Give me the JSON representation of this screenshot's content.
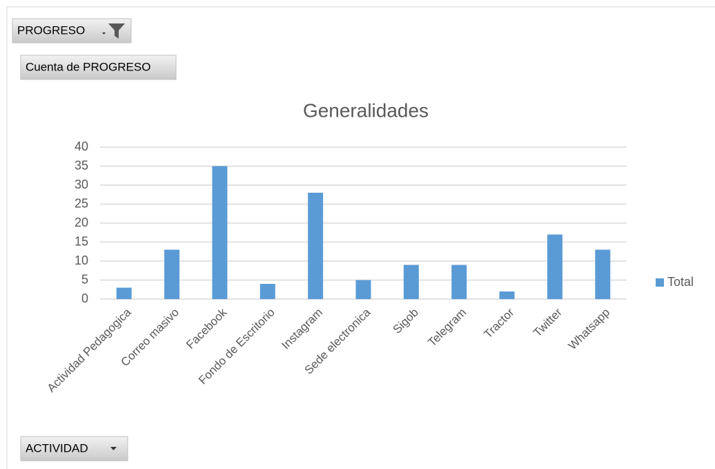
{
  "chart_data": {
    "type": "bar",
    "title": "Generalidades",
    "filter_field": "PROGRESO",
    "value_field": "Cuenta de PROGRESO",
    "axis_field": "ACTIVIDAD",
    "categories": [
      "Actividad Pedagogica",
      "Correo masivo",
      "Facebook",
      "Fondo de Escritorio",
      "Instagram",
      "Sede electronica",
      "Sigob",
      "Telegram",
      "Tractor",
      "Twitter",
      "Whatsapp"
    ],
    "series": [
      {
        "name": "Total",
        "color": "#5b9bd5",
        "values": [
          3,
          13,
          35,
          4,
          28,
          5,
          9,
          9,
          2,
          17,
          13
        ]
      }
    ],
    "ylim": [
      0,
      40
    ],
    "yticks": [
      0,
      5,
      10,
      15,
      20,
      25,
      30,
      35,
      40
    ],
    "grid": true,
    "legend": "right"
  }
}
